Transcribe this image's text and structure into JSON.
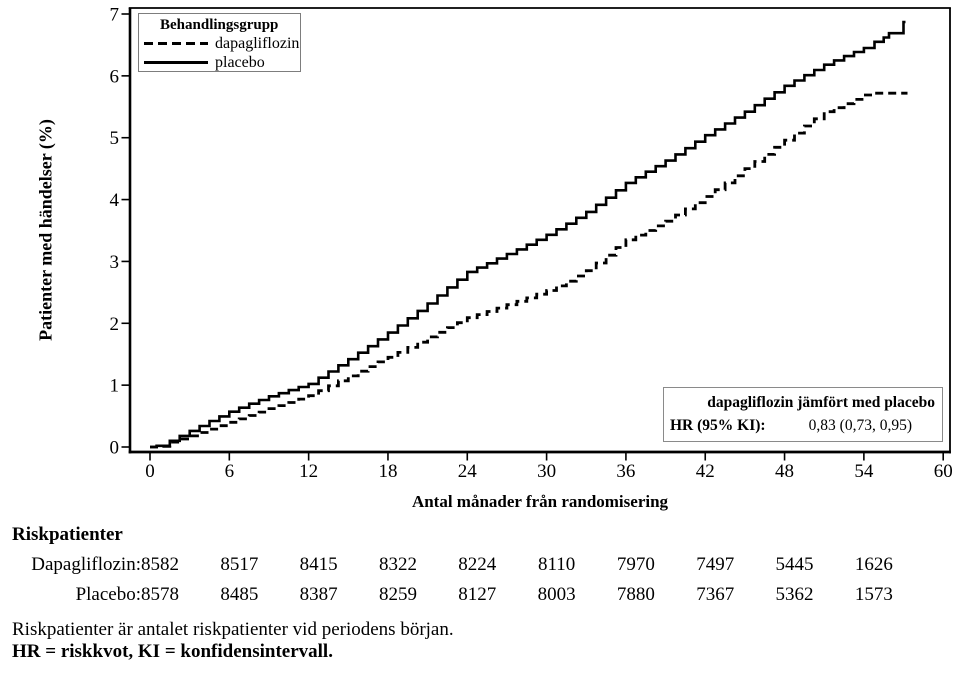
{
  "chart_data": {
    "type": "line",
    "subtype": "kaplan-meier-cumulative-incidence-step",
    "title": "",
    "xlabel": "Antal månader från randomisering",
    "ylabel": "Patienter med händelser (%)",
    "xlim": [
      0,
      60
    ],
    "ylim": [
      0,
      7
    ],
    "x_ticks": [
      0,
      6,
      12,
      18,
      24,
      30,
      36,
      42,
      48,
      54,
      60
    ],
    "y_ticks": [
      0,
      1,
      2,
      3,
      4,
      5,
      6,
      7
    ],
    "grid": "off",
    "legend": {
      "title": "Behandlingsgrupp",
      "position": "top-left"
    },
    "series": [
      {
        "name": "dapagliflozin",
        "line": "dashed",
        "color": "#000000",
        "points": [
          [
            0,
            0
          ],
          [
            0.7,
            0.01
          ],
          [
            1.5,
            0.08
          ],
          [
            3,
            0.18
          ],
          [
            4.5,
            0.29
          ],
          [
            6,
            0.4
          ],
          [
            7.5,
            0.51
          ],
          [
            9,
            0.62
          ],
          [
            10.5,
            0.72
          ],
          [
            12,
            0.83
          ],
          [
            13.5,
            0.99
          ],
          [
            15,
            1.15
          ],
          [
            16.5,
            1.3
          ],
          [
            18,
            1.45
          ],
          [
            19.5,
            1.61
          ],
          [
            21,
            1.78
          ],
          [
            22.5,
            1.93
          ],
          [
            24,
            2.09
          ],
          [
            25.5,
            2.19
          ],
          [
            27,
            2.3
          ],
          [
            28.5,
            2.41
          ],
          [
            30,
            2.53
          ],
          [
            31.5,
            2.68
          ],
          [
            33,
            2.85
          ],
          [
            34.5,
            3.1
          ],
          [
            36,
            3.35
          ],
          [
            37.5,
            3.5
          ],
          [
            39,
            3.65
          ],
          [
            40.5,
            3.85
          ],
          [
            42,
            4.05
          ],
          [
            43.5,
            4.27
          ],
          [
            45,
            4.5
          ],
          [
            46.5,
            4.73
          ],
          [
            48,
            4.96
          ],
          [
            49.5,
            5.19
          ],
          [
            51,
            5.42
          ],
          [
            52.5,
            5.55
          ],
          [
            54,
            5.69
          ],
          [
            54.8,
            5.72
          ],
          [
            57.3,
            5.72
          ]
        ]
      },
      {
        "name": "placebo",
        "line": "solid",
        "color": "#000000",
        "points": [
          [
            0,
            0
          ],
          [
            0.5,
            0.02
          ],
          [
            1.5,
            0.1
          ],
          [
            3,
            0.26
          ],
          [
            4.5,
            0.42
          ],
          [
            6,
            0.57
          ],
          [
            7.5,
            0.7
          ],
          [
            9,
            0.82
          ],
          [
            10.5,
            0.92
          ],
          [
            12,
            1.02
          ],
          [
            13.5,
            1.22
          ],
          [
            15,
            1.42
          ],
          [
            16.5,
            1.63
          ],
          [
            18,
            1.85
          ],
          [
            19.5,
            2.08
          ],
          [
            21,
            2.32
          ],
          [
            22.5,
            2.58
          ],
          [
            24,
            2.83
          ],
          [
            25.5,
            2.97
          ],
          [
            27,
            3.12
          ],
          [
            28.5,
            3.27
          ],
          [
            30,
            3.43
          ],
          [
            31.5,
            3.61
          ],
          [
            33,
            3.8
          ],
          [
            34.5,
            4.03
          ],
          [
            36,
            4.27
          ],
          [
            37.5,
            4.45
          ],
          [
            39,
            4.63
          ],
          [
            40.5,
            4.83
          ],
          [
            42,
            5.04
          ],
          [
            43.5,
            5.23
          ],
          [
            45,
            5.42
          ],
          [
            46.5,
            5.63
          ],
          [
            48,
            5.84
          ],
          [
            49.5,
            6.01
          ],
          [
            51,
            6.18
          ],
          [
            52.5,
            6.32
          ],
          [
            54,
            6.45
          ],
          [
            54.8,
            6.55
          ],
          [
            55.5,
            6.62
          ],
          [
            55.9,
            6.69
          ],
          [
            56.9,
            6.69
          ],
          [
            57,
            6.87
          ],
          [
            57.15,
            6.87
          ]
        ]
      }
    ],
    "annotation": {
      "title": "dapagliflozin jämfört med placebo",
      "hr_label": "HR (95% KI):",
      "hr_value": "0,83 (0,73, 0,95)"
    }
  },
  "risk_table": {
    "title": "Riskpatienter",
    "time_points": [
      0,
      6,
      12,
      18,
      24,
      30,
      36,
      42,
      48,
      54
    ],
    "rows": [
      {
        "label": "Dapagliflozin:",
        "values": [
          "8582",
          "8517",
          "8415",
          "8322",
          "8224",
          "8110",
          "7970",
          "7497",
          "5445",
          "1626"
        ]
      },
      {
        "label": "Placebo:",
        "values": [
          "8578",
          "8485",
          "8387",
          "8259",
          "8127",
          "8003",
          "7880",
          "7367",
          "5362",
          "1573"
        ]
      }
    ]
  },
  "footnotes": [
    "Riskpatienter är antalet riskpatienter vid periodens början.",
    "HR = riskkvot, KI = konfidensintervall."
  ],
  "colors": {
    "line": "#000000",
    "frame": "#000000",
    "box_border": "#8a8a8a",
    "background": "#ffffff",
    "text": "#000000"
  }
}
